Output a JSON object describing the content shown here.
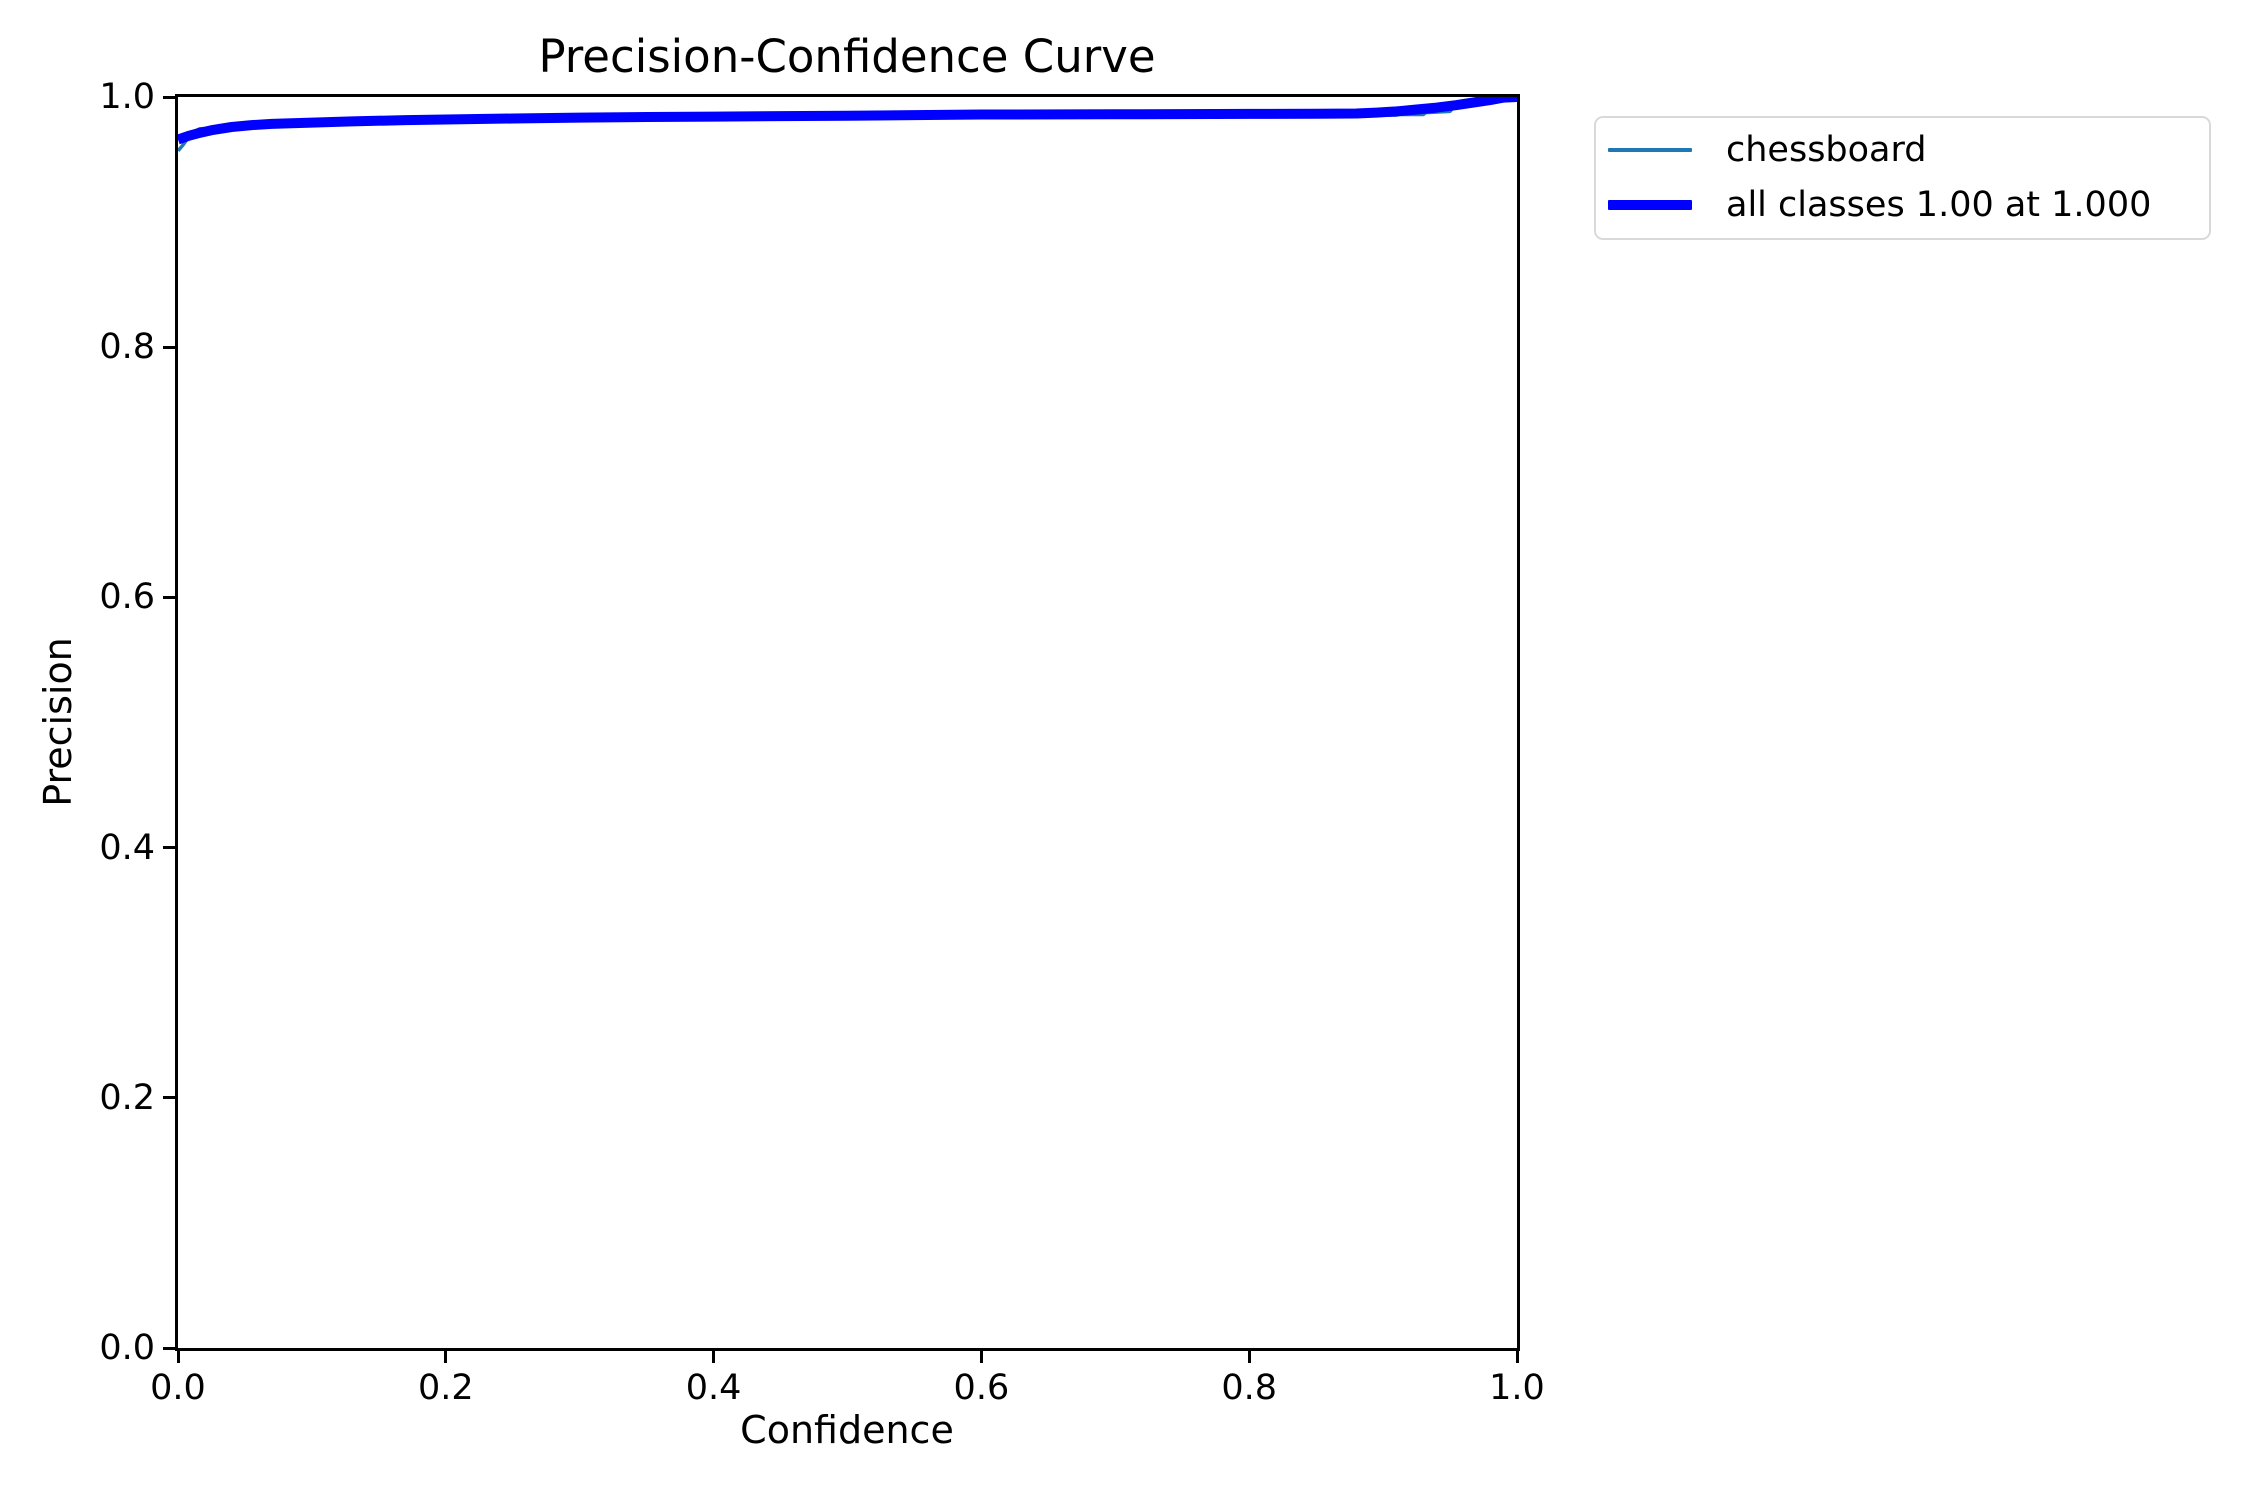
{
  "figure": {
    "title": "Precision-Confidence Curve",
    "x_axis_label": "Confidence",
    "y_axis_label": "Precision"
  },
  "legend": {
    "items": [
      {
        "label": "chessboard",
        "color": "#1f77b4",
        "swatch_thickness": 4
      },
      {
        "label": "all classes 1.00 at 1.000",
        "color": "#0000ff",
        "swatch_thickness": 10
      }
    ]
  },
  "chart_data": {
    "type": "line",
    "title": "Precision-Confidence Curve",
    "xlabel": "Confidence",
    "ylabel": "Precision",
    "xlim": [
      0,
      1
    ],
    "ylim": [
      0,
      1
    ],
    "x_ticks": [
      0.0,
      0.2,
      0.4,
      0.6,
      0.8,
      1.0
    ],
    "y_ticks": [
      0.0,
      0.2,
      0.4,
      0.6,
      0.8,
      1.0
    ],
    "grid": false,
    "legend_position": "outside-upper-right",
    "series": [
      {
        "name": "chessboard",
        "color": "#1f77b4",
        "linewidth": 3.5,
        "x": [
          0.0,
          0.004,
          0.008,
          0.012,
          0.016,
          0.03,
          0.05,
          0.07,
          0.1,
          0.15,
          0.2,
          0.3,
          0.4,
          0.5,
          0.6,
          0.7,
          0.8,
          0.85,
          0.88,
          0.895,
          0.896,
          0.91,
          0.912,
          0.93,
          0.932,
          0.95,
          0.952,
          0.97,
          0.985,
          1.0
        ],
        "y": [
          0.957,
          0.962,
          0.968,
          0.9725,
          0.9745,
          0.9755,
          0.977,
          0.9785,
          0.9795,
          0.981,
          0.982,
          0.9835,
          0.9843,
          0.985,
          0.986,
          0.9862,
          0.9865,
          0.9866,
          0.9863,
          0.9855,
          0.9855,
          0.9855,
          0.986,
          0.986,
          0.9875,
          0.9885,
          0.991,
          0.995,
          0.998,
          1.0
        ]
      },
      {
        "name": "all classes 1.00 at 1.000",
        "color": "#0000ff",
        "linewidth": 10,
        "x": [
          0.0,
          0.008,
          0.015,
          0.025,
          0.04,
          0.055,
          0.07,
          0.1,
          0.13,
          0.17,
          0.2,
          0.25,
          0.3,
          0.35,
          0.4,
          0.45,
          0.5,
          0.55,
          0.6,
          0.7,
          0.8,
          0.85,
          0.88,
          0.895,
          0.91,
          0.925,
          0.94,
          0.955,
          0.97,
          0.98,
          0.99,
          1.0
        ],
        "y": [
          0.966,
          0.969,
          0.971,
          0.9735,
          0.976,
          0.9775,
          0.9785,
          0.9795,
          0.9805,
          0.9815,
          0.982,
          0.9828,
          0.9835,
          0.984,
          0.9843,
          0.9847,
          0.985,
          0.9855,
          0.986,
          0.9862,
          0.9865,
          0.9866,
          0.9868,
          0.9875,
          0.9885,
          0.99,
          0.9915,
          0.9935,
          0.996,
          0.9975,
          0.9995,
          1.0
        ]
      }
    ]
  }
}
